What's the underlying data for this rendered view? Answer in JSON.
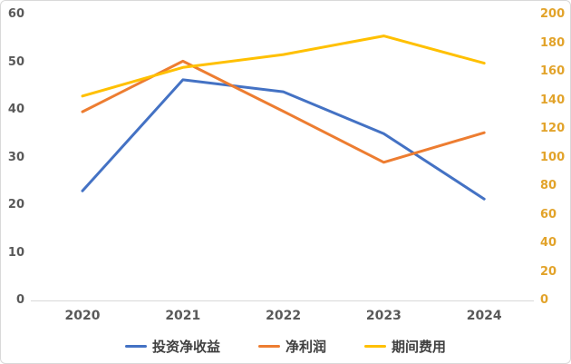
{
  "chart_data": {
    "type": "line",
    "title": "",
    "x": [
      "2020",
      "2021",
      "2022",
      "2023",
      "2024"
    ],
    "series": [
      {
        "name": "投资净收益",
        "axis": "left",
        "color": "#4472C4",
        "values": [
          23.0,
          46.3,
          43.8,
          35.0,
          21.3
        ]
      },
      {
        "name": "净利润",
        "axis": "left",
        "color": "#ED7D31",
        "values": [
          39.6,
          50.2,
          39.7,
          29.0,
          35.2
        ]
      },
      {
        "name": "期间费用",
        "axis": "right",
        "color": "#FFC000",
        "values": [
          143,
          163,
          172,
          185,
          166
        ]
      }
    ],
    "left_axis": {
      "min": 0,
      "max": 60,
      "step": 10,
      "ticks": [
        "0",
        "10",
        "20",
        "30",
        "40",
        "50",
        "60"
      ],
      "label_color": "#595959"
    },
    "right_axis": {
      "min": 0,
      "max": 200,
      "step": 20,
      "ticks": [
        "0",
        "20",
        "40",
        "60",
        "80",
        "100",
        "120",
        "140",
        "160",
        "180",
        "200"
      ],
      "label_color": "#E2A32A"
    },
    "x_axis_label_color": "#595959",
    "axis_line_color": "#D9D9D9",
    "grid": false,
    "legend_position": "bottom"
  }
}
